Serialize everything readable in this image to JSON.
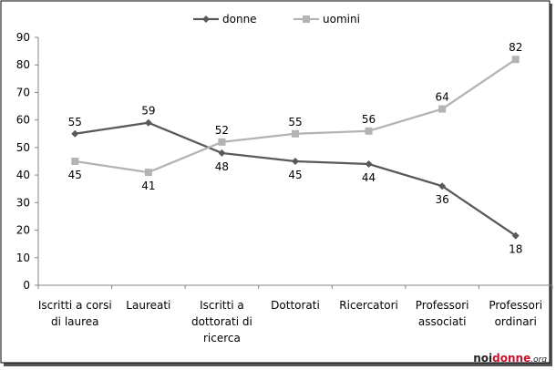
{
  "chart_data": {
    "type": "line",
    "categories": [
      [
        "Iscritti a corsi",
        "di laurea"
      ],
      [
        "Laureati"
      ],
      [
        "Iscritti a",
        "dottorati di",
        "ricerca"
      ],
      [
        "Dottorati"
      ],
      [
        "Ricercatori"
      ],
      [
        "Professori",
        "associati"
      ],
      [
        "Professori",
        "ordinari"
      ]
    ],
    "series": [
      {
        "name": "donne",
        "values": [
          55,
          59,
          48,
          45,
          44,
          36,
          18
        ],
        "color": "#595959",
        "marker": "diamond"
      },
      {
        "name": "uomini",
        "values": [
          45,
          41,
          52,
          55,
          56,
          64,
          82
        ],
        "color": "#b3b3b3",
        "marker": "square"
      }
    ],
    "ylim": [
      0,
      90
    ],
    "yticks": [
      0,
      10,
      20,
      30,
      40,
      50,
      60,
      70,
      80,
      90
    ],
    "grid": false,
    "legend": "top-center",
    "title": "",
    "xlabel": "",
    "ylabel": ""
  },
  "watermark": {
    "part1": "noi",
    "part2": "donne",
    "part3": ".org"
  }
}
